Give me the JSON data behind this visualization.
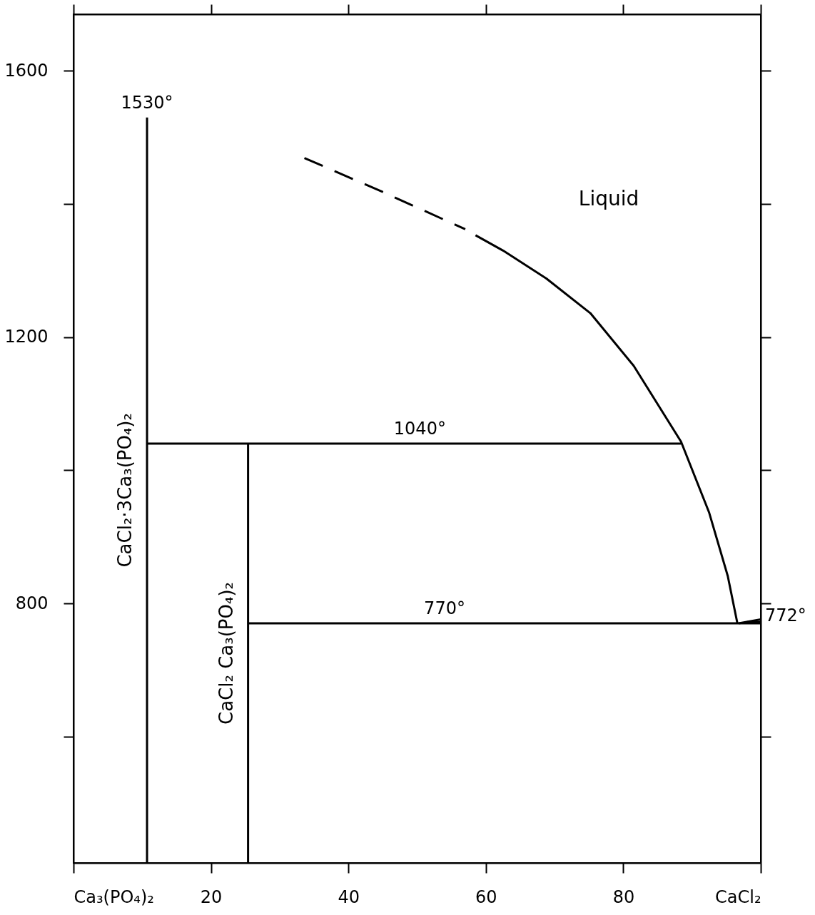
{
  "chart_data": {
    "type": "line",
    "xlim": [
      0,
      100
    ],
    "ylim": [
      410,
      1685
    ],
    "xticks": [
      {
        "value": 0,
        "label": "Ca₃(PO₄)₂"
      },
      20,
      40,
      60,
      80,
      {
        "value": 100,
        "label": "CaCl₂"
      }
    ],
    "yticks": [
      {
        "value": 600,
        "label": null
      },
      {
        "value": 800,
        "label": "800"
      },
      {
        "value": 1000,
        "label": null
      },
      {
        "value": 1200,
        "label": "1200"
      },
      {
        "value": 1400,
        "label": null
      },
      {
        "value": 1600,
        "label": "1600"
      }
    ],
    "grid": false,
    "legend": false,
    "marker": "none",
    "series": [
      {
        "name": "CaCl₂·3Ca₃(PO₄)₂",
        "color": "#000000",
        "line_style": "solid",
        "x": [
          10.7,
          10.7
        ],
        "values": [
          410,
          1530
        ]
      },
      {
        "name": "CaCl₂ Ca₃(PO₄)₂",
        "color": "#000000",
        "line_style": "solid",
        "x": [
          25.4,
          25.4
        ],
        "values": [
          410,
          1040
        ]
      },
      {
        "color": "#000000",
        "line_style": "solid",
        "x": [
          10.7,
          88.4
        ],
        "values": [
          1040,
          1040
        ]
      },
      {
        "color": "#000000",
        "line_style": "solid",
        "x": [
          25.4,
          100
        ],
        "values": [
          770,
          770
        ]
      },
      {
        "color": "#000000",
        "line_style": "dashed",
        "x": [
          33.6,
          45.0,
          57.0
        ],
        "values": [
          1469,
          1418,
          1362
        ]
      },
      {
        "color": "#000000",
        "line_style": "solid",
        "x": [
          58.5,
          62.5,
          68.8,
          75.2,
          81.5,
          88.4,
          92.5,
          95.2,
          96.6
        ],
        "values": [
          1353,
          1330,
          1288,
          1236,
          1157,
          1043,
          936,
          841,
          770
        ]
      },
      {
        "color": "#000000",
        "line_style": "solid",
        "x": [
          96.8,
          100
        ],
        "values": [
          770,
          776
        ]
      },
      {
        "color": "#000000",
        "line_style": "solid",
        "x": [
          98.0,
          100
        ],
        "values": [
          772,
          772
        ]
      }
    ],
    "annotations": [
      {
        "text": "1530°",
        "x": 10.7,
        "y": 1530
      },
      {
        "text": "1040°",
        "x": 50.4,
        "y": 1040
      },
      {
        "text": "770°",
        "x": 54,
        "y": 770
      },
      {
        "text": "772°",
        "x": 100,
        "y": 772
      },
      "Liquid"
    ]
  }
}
